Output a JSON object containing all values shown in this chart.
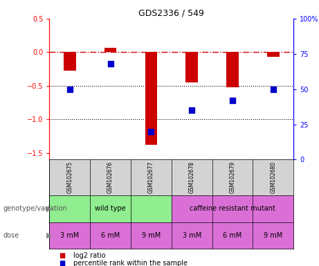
{
  "title": "GDS2336 / 549",
  "samples": [
    "GSM102675",
    "GSM102676",
    "GSM102677",
    "GSM102678",
    "GSM102679",
    "GSM102680"
  ],
  "log2_ratio": [
    -0.28,
    0.07,
    -1.38,
    -0.45,
    -0.52,
    -0.07
  ],
  "percentile_rank": [
    50,
    68,
    20,
    35,
    42,
    50
  ],
  "ylim_left": [
    -1.6,
    0.5
  ],
  "ylim_right": [
    0,
    100
  ],
  "yticks_left": [
    0.5,
    0,
    -0.5,
    -1.0,
    -1.5
  ],
  "yticks_right": [
    100,
    75,
    50,
    25,
    0
  ],
  "bar_color": "#cc0000",
  "dot_color": "#0000cc",
  "bar_width": 0.3,
  "dot_size": 30,
  "genotype_groups": [
    {
      "label": "wild type",
      "cols": [
        0,
        1,
        2
      ],
      "color": "#90ee90"
    },
    {
      "label": "caffeine resistant mutant",
      "cols": [
        3,
        4,
        5
      ],
      "color": "#da70d6"
    }
  ],
  "doses": [
    "3 mM",
    "6 mM",
    "9 mM",
    "3 mM",
    "6 mM",
    "9 mM"
  ],
  "dose_color": "#da70d6",
  "gsm_bg": "#d3d3d3",
  "legend_bar_label": "log2 ratio",
  "legend_dot_label": "percentile rank within the sample",
  "genotype_label": "genotype/variation",
  "dose_label": "dose"
}
